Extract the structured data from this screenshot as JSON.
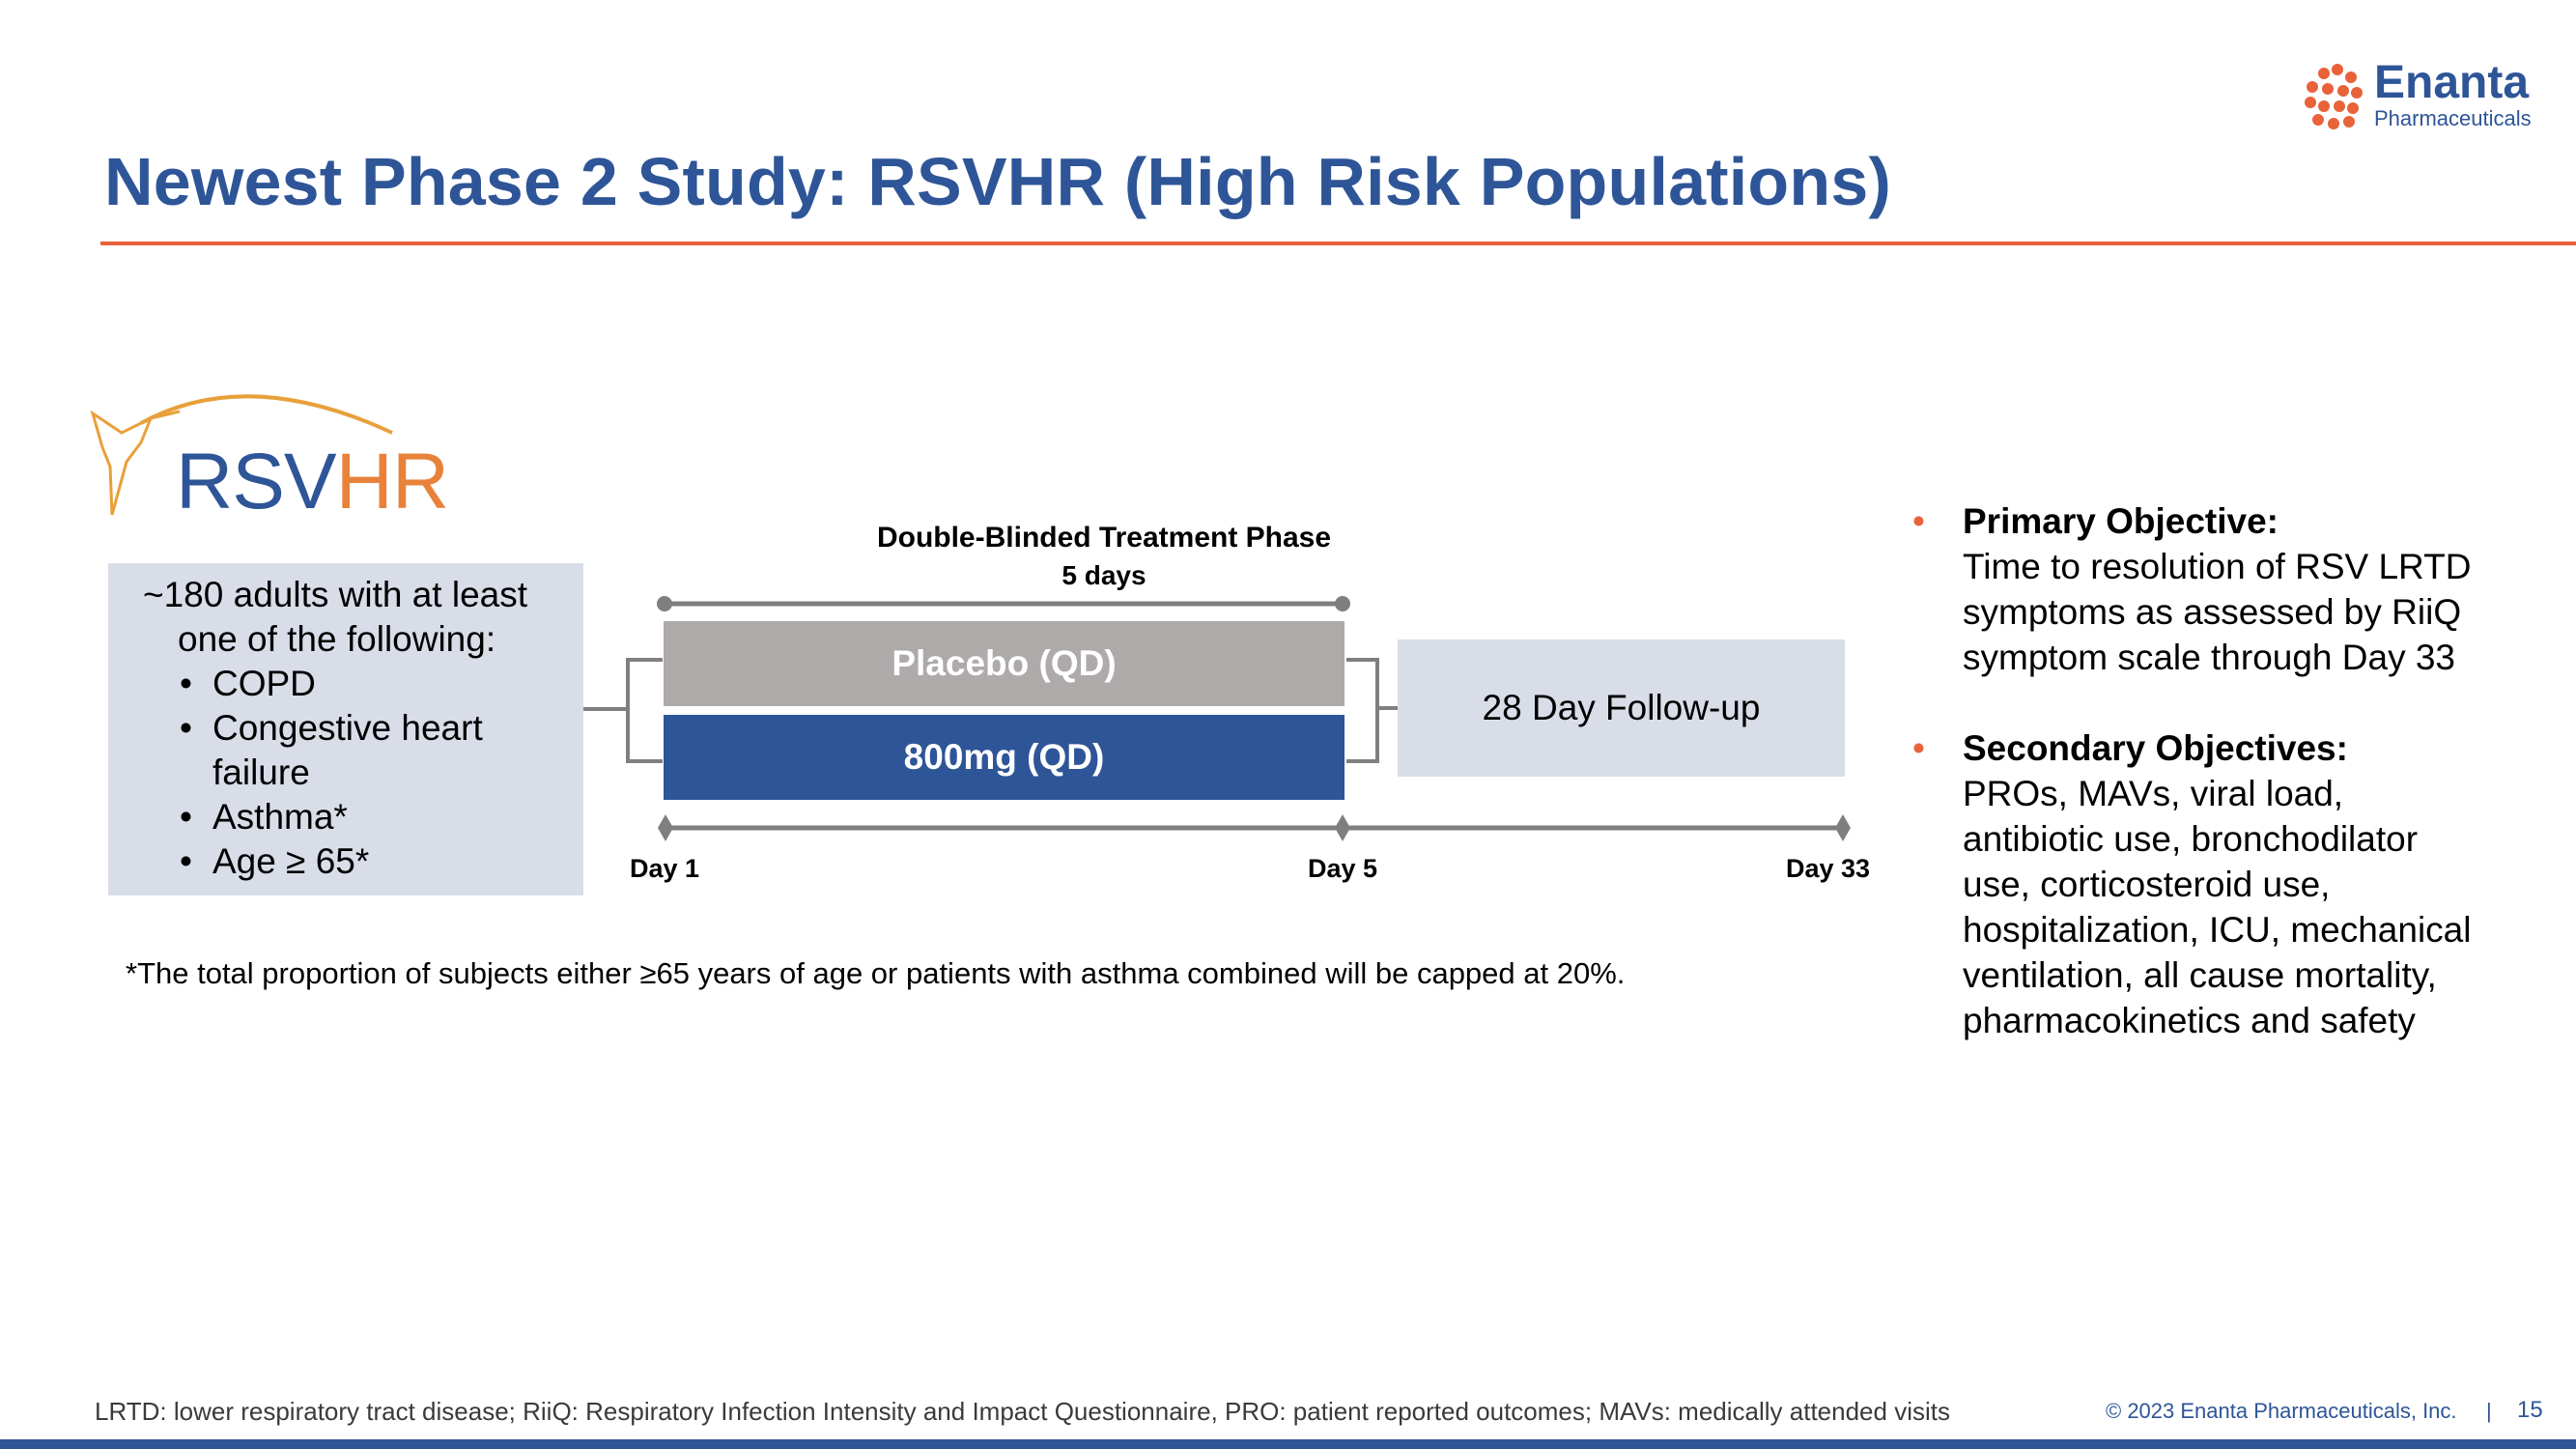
{
  "header": {
    "title": "Newest Phase 2 Study: RSVHR (High Risk Populations)",
    "company_logo": {
      "name": "Enanta",
      "subtitle": "Pharmaceuticals",
      "icon": "enanta-molecule-icon"
    }
  },
  "study_logo": {
    "prefix": "RSV",
    "suffix": "HR",
    "icon": "hummingbird-icon"
  },
  "population": {
    "line1": "~180 adults with at least",
    "line2": "one of the following:",
    "items": [
      "COPD",
      "Congestive heart",
      "failure",
      "Asthma*",
      "Age ≥ 65*"
    ]
  },
  "treatment": {
    "phase_title": "Double-Blinded Treatment Phase",
    "phase_duration": "5 days",
    "arms": [
      "Placebo (QD)",
      "800mg (QD)"
    ],
    "followup": "28 Day Follow-up",
    "days": [
      "Day 1",
      "Day 5",
      "Day 33"
    ]
  },
  "footnote": "*The total proportion of subjects either ≥65 years of age or patients with asthma combined will be capped at 20%.",
  "objectives": [
    {
      "heading": "Primary Objective:",
      "lines": [
        "Time to resolution of RSV LRTD",
        "symptoms as assessed by RiiQ",
        "symptom scale through Day 33"
      ]
    },
    {
      "heading": "Secondary Objectives:",
      "lines": [
        "PROs, MAVs, viral load,",
        "antibiotic use, bronchodilator",
        "use, corticosteroid use,",
        "hospitalization, ICU, mechanical",
        "ventilation, all cause mortality,",
        "pharmacokinetics and safety"
      ]
    }
  ],
  "footer": {
    "definitions": "LRTD: lower respiratory tract disease; RiiQ: Respiratory Infection Intensity and Impact Questionnaire, PRO: patient reported outcomes; MAVs: medically attended visits",
    "copyright": "© 2023  Enanta Pharmaceuticals, Inc.",
    "separator": "|",
    "page": "15"
  },
  "colors": {
    "brand_blue": "#2e5597",
    "accent_orange": "#e8623a",
    "placebo_gray": "#aeaaa9",
    "box_gray": "#d8dde8"
  }
}
